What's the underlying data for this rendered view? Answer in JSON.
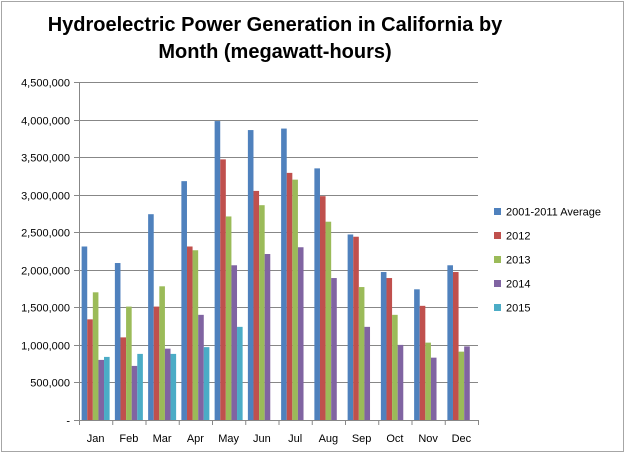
{
  "chart_data": {
    "type": "bar",
    "title": "Hydroelectric Power Generation in California by Month (megawatt-hours)",
    "xlabel": "",
    "ylabel": "",
    "ylim": [
      0,
      4500000
    ],
    "yticks": [
      0,
      500000,
      1000000,
      1500000,
      2000000,
      2500000,
      3000000,
      3500000,
      4000000,
      4500000
    ],
    "ytick_labels": [
      "-",
      "500,000",
      "1,000,000",
      "1,500,000",
      "2,000,000",
      "2,500,000",
      "3,000,000",
      "3,500,000",
      "4,000,000",
      "4,500,000"
    ],
    "grid": true,
    "legend_position": "right",
    "categories": [
      "Jan",
      "Feb",
      "Mar",
      "Apr",
      "May",
      "Jun",
      "Jul",
      "Aug",
      "Sep",
      "Oct",
      "Nov",
      "Dec"
    ],
    "series": [
      {
        "name": "2001-2011 Average",
        "color": "#4f81bd",
        "values": [
          2310000,
          2090000,
          2740000,
          3180000,
          3980000,
          3860000,
          3880000,
          3350000,
          2470000,
          1970000,
          1740000,
          2060000
        ]
      },
      {
        "name": "2012",
        "color": "#c0504d",
        "values": [
          1340000,
          1100000,
          1510000,
          2310000,
          3470000,
          3050000,
          3290000,
          2980000,
          2440000,
          1890000,
          1520000,
          1970000
        ]
      },
      {
        "name": "2013",
        "color": "#9bbb59",
        "values": [
          1700000,
          1510000,
          1780000,
          2260000,
          2710000,
          2860000,
          3200000,
          2640000,
          1770000,
          1400000,
          1030000,
          910000
        ]
      },
      {
        "name": "2014",
        "color": "#8064a2",
        "values": [
          800000,
          720000,
          950000,
          1400000,
          2060000,
          2210000,
          2300000,
          1890000,
          1240000,
          1000000,
          830000,
          980000
        ]
      },
      {
        "name": "2015",
        "color": "#4bacc6",
        "values": [
          840000,
          880000,
          880000,
          970000,
          1240000,
          null,
          null,
          null,
          null,
          null,
          null,
          null
        ]
      }
    ]
  }
}
